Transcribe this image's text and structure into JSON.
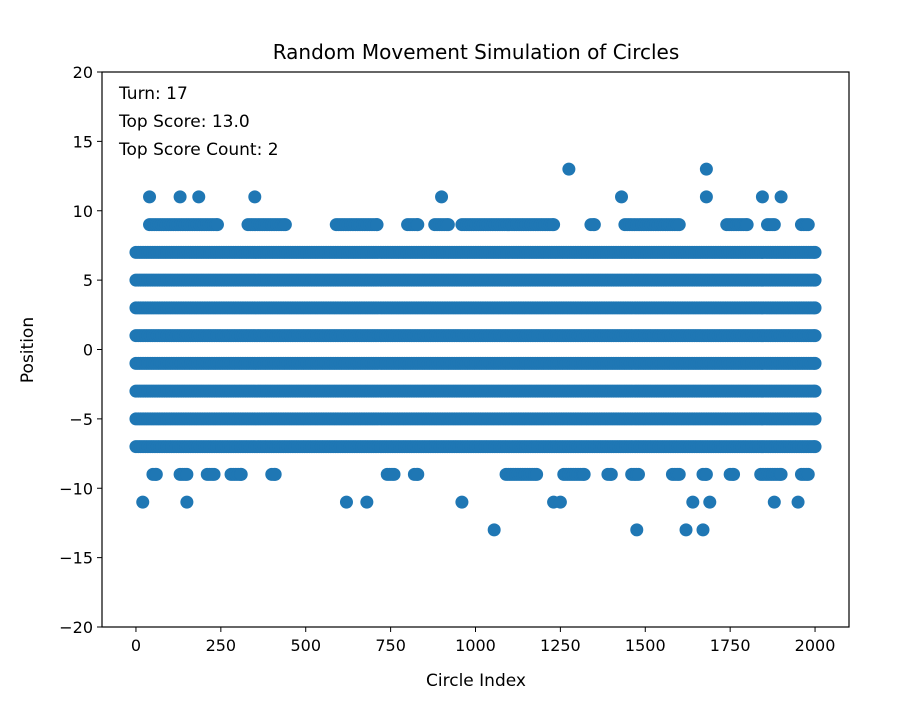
{
  "chart_data": {
    "type": "scatter",
    "title": "Random Movement Simulation of Circles",
    "xlabel": "Circle Index",
    "ylabel": "Position",
    "xlim": [
      -100,
      2100
    ],
    "ylim": [
      -20,
      20
    ],
    "x_ticks": [
      0,
      250,
      500,
      750,
      1000,
      1250,
      1500,
      1750,
      2000
    ],
    "y_ticks": [
      -20,
      -15,
      -10,
      -5,
      0,
      5,
      10,
      15,
      20
    ],
    "y_tick_labels": [
      "−20",
      "−15",
      "−10",
      "−5",
      "0",
      "5",
      "10",
      "15",
      "20"
    ],
    "marker_color": "#1f77b4",
    "grid": false,
    "legend": "none",
    "annotations": {
      "turn": "Turn: 17",
      "top_score": "Top Score: 13.0",
      "top_score_count": "Top Score Count: 2"
    },
    "level_ranges": [
      {
        "y": 13,
        "x": [
          1275,
          1680
        ]
      },
      {
        "y": 11,
        "x": [
          40,
          130,
          185,
          350,
          900,
          1430,
          1680,
          1845,
          1900
        ]
      },
      {
        "y": 9,
        "x": [
          [
            40,
            240
          ],
          [
            330,
            440
          ],
          [
            590,
            710
          ],
          [
            800,
            830
          ],
          [
            880,
            920
          ],
          [
            960,
            1230
          ],
          [
            1340,
            1350
          ],
          [
            1440,
            1600
          ],
          [
            1740,
            1800
          ],
          [
            1860,
            1880
          ],
          [
            1960,
            1980
          ]
        ]
      },
      {
        "y": 7,
        "x": [
          [
            0,
            2000
          ]
        ]
      },
      {
        "y": 5,
        "x": [
          [
            0,
            2000
          ]
        ]
      },
      {
        "y": 3,
        "x": [
          [
            0,
            2000
          ]
        ]
      },
      {
        "y": 1,
        "x": [
          [
            0,
            2000
          ]
        ]
      },
      {
        "y": -1,
        "x": [
          [
            0,
            2000
          ]
        ]
      },
      {
        "y": -3,
        "x": [
          [
            0,
            2000
          ]
        ]
      },
      {
        "y": -5,
        "x": [
          [
            0,
            2000
          ]
        ]
      },
      {
        "y": -7,
        "x": [
          [
            0,
            2000
          ]
        ]
      },
      {
        "y": -9,
        "x": [
          [
            50,
            60
          ],
          [
            130,
            150
          ],
          [
            210,
            230
          ],
          [
            280,
            310
          ],
          [
            400,
            410
          ],
          [
            740,
            760
          ],
          [
            820,
            830
          ],
          [
            1090,
            1180
          ],
          [
            1260,
            1320
          ],
          [
            1390,
            1400
          ],
          [
            1460,
            1480
          ],
          [
            1580,
            1600
          ],
          [
            1670,
            1680
          ],
          [
            1750,
            1760
          ],
          [
            1840,
            1900
          ],
          [
            1960,
            1980
          ]
        ]
      },
      {
        "y": -11,
        "x": [
          20,
          150,
          620,
          680,
          960,
          1230,
          1250,
          1640,
          1690,
          1880,
          1950
        ]
      },
      {
        "y": -13,
        "x": [
          1055,
          1475,
          1620,
          1670
        ]
      }
    ]
  }
}
